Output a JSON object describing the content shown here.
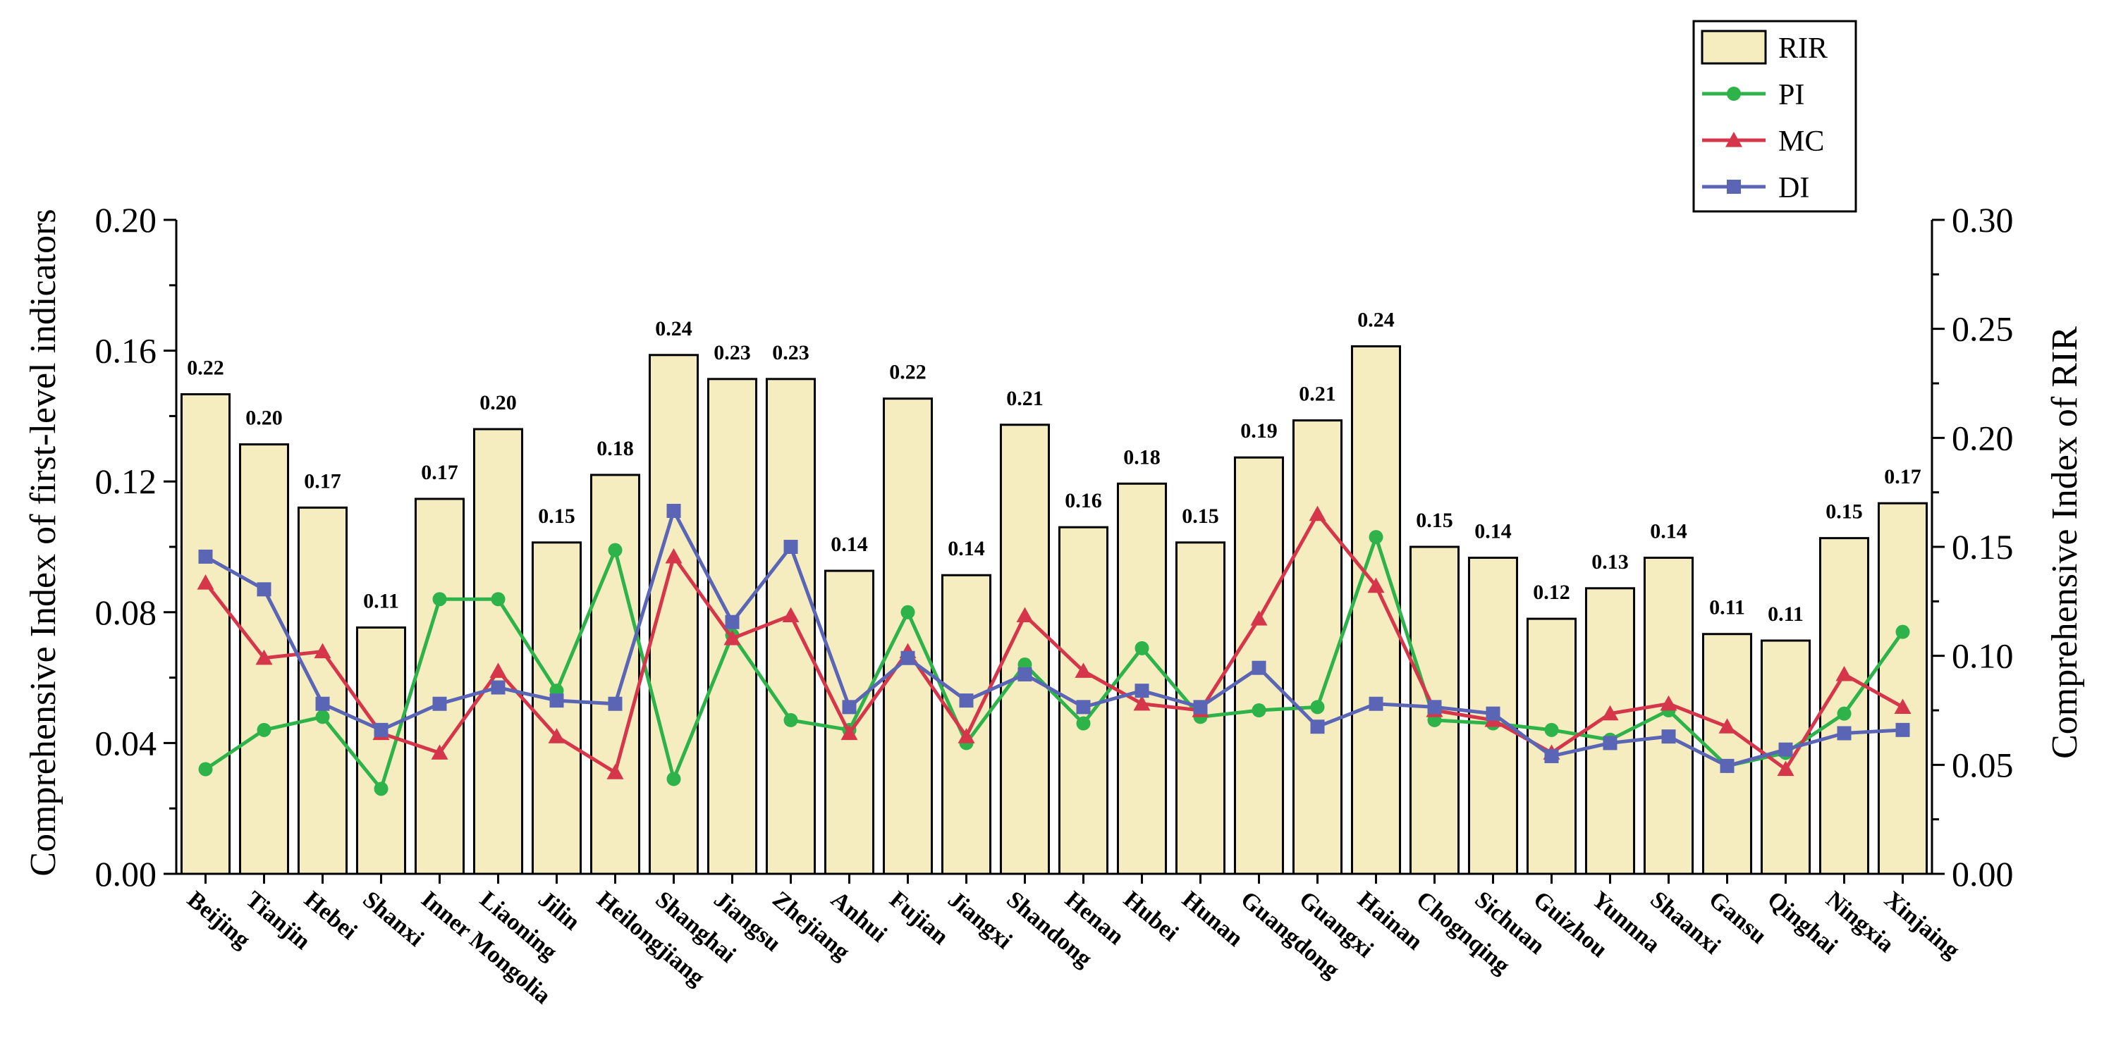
{
  "chart_data": {
    "type": "bar+line",
    "categories": [
      "Beijing",
      "Tianjin",
      "Hebei",
      "Shanxi",
      "Inner Mongolia",
      "Liaoning",
      "Jilin",
      "Heilongjiang",
      "Shanghai",
      "Jiangsu",
      "Zhejiang",
      "Anhui",
      "Fujian",
      "Jiangxi",
      "Shandong",
      "Henan",
      "Hubei",
      "Hunan",
      "Guangdong",
      "Guangxi",
      "Hainan",
      "Chognqing",
      "Sichuan",
      "Guizhou",
      "Yunnna",
      "Shaanxi",
      "Gansu",
      "Qinghai",
      "Ningxia",
      "Xinjaing"
    ],
    "bar_series": {
      "name": "RIR",
      "axis": "right",
      "values": [
        0.22,
        0.197,
        0.168,
        0.113,
        0.172,
        0.204,
        0.152,
        0.183,
        0.238,
        0.227,
        0.227,
        0.139,
        0.218,
        0.137,
        0.206,
        0.159,
        0.179,
        0.152,
        0.191,
        0.208,
        0.242,
        0.15,
        0.145,
        0.117,
        0.131,
        0.145,
        0.11,
        0.107,
        0.154,
        0.17
      ],
      "labels": [
        "0.22",
        "0.20",
        "0.17",
        "0.11",
        "0.17",
        "0.20",
        "0.15",
        "0.18",
        "0.24",
        "0.23",
        "0.23",
        "0.14",
        "0.22",
        "0.14",
        "0.21",
        "0.16",
        "0.18",
        "0.15",
        "0.19",
        "0.21",
        "0.24",
        "0.15",
        "0.14",
        "0.12",
        "0.13",
        "0.14",
        "0.11",
        "0.11",
        "0.15",
        "0.17"
      ],
      "color": "#f5ecc0"
    },
    "line_series": [
      {
        "name": "PI",
        "axis": "left",
        "color": "#2db34a",
        "marker": "circle",
        "values": [
          0.032,
          0.044,
          0.048,
          0.026,
          0.084,
          0.084,
          0.056,
          0.099,
          0.029,
          0.073,
          0.047,
          0.044,
          0.08,
          0.04,
          0.064,
          0.046,
          0.069,
          0.048,
          0.05,
          0.051,
          0.103,
          0.047,
          0.046,
          0.044,
          0.041,
          0.05,
          0.033,
          0.037,
          0.049,
          0.074
        ]
      },
      {
        "name": "MC",
        "axis": "left",
        "color": "#d6364a",
        "marker": "triangle",
        "values": [
          0.089,
          0.066,
          0.068,
          0.043,
          0.037,
          0.062,
          0.042,
          0.031,
          0.097,
          0.072,
          0.079,
          0.043,
          0.068,
          0.042,
          0.079,
          0.062,
          0.052,
          0.05,
          0.078,
          0.11,
          0.088,
          0.05,
          0.047,
          0.037,
          0.049,
          0.052,
          0.045,
          0.032,
          0.061,
          0.051
        ]
      },
      {
        "name": "DI",
        "axis": "left",
        "color": "#5a66b5",
        "marker": "square",
        "values": [
          0.097,
          0.087,
          0.052,
          0.044,
          0.052,
          0.057,
          0.053,
          0.052,
          0.111,
          0.077,
          0.1,
          0.051,
          0.066,
          0.053,
          0.061,
          0.051,
          0.056,
          0.051,
          0.063,
          0.045,
          0.052,
          0.051,
          0.049,
          0.036,
          0.04,
          0.042,
          0.033,
          0.038,
          0.043,
          0.044
        ]
      }
    ],
    "left_axis": {
      "label": "Comprehensive Index of first-level indicators",
      "range": [
        0,
        0.2
      ],
      "ticks": [
        "0.00",
        "0.04",
        "0.08",
        "0.12",
        "0.16",
        "0.20"
      ]
    },
    "right_axis": {
      "label": "Comprehensive Index of RIR",
      "range": [
        0,
        0.3
      ],
      "ticks": [
        "0.00",
        "0.05",
        "0.10",
        "0.15",
        "0.20",
        "0.25",
        "0.30"
      ]
    },
    "legend": {
      "position": "top-right",
      "entries": [
        "RIR",
        "PI",
        "MC",
        "DI"
      ]
    }
  }
}
